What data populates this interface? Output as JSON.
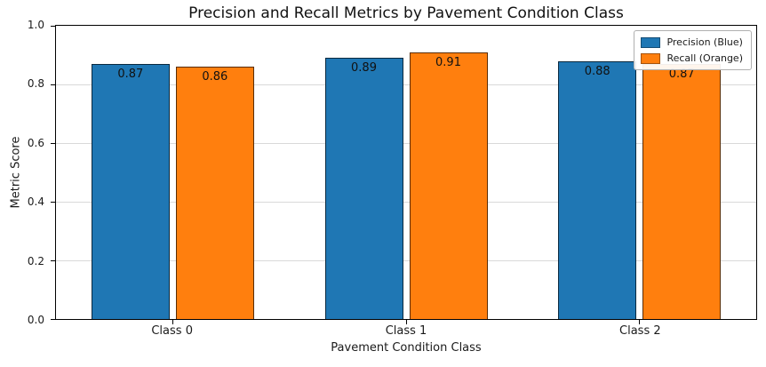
{
  "chart_data": {
    "type": "bar",
    "title": "Precision and Recall Metrics by Pavement Condition Class",
    "xlabel": "Pavement Condition Class",
    "ylabel": "Metric Score",
    "categories": [
      "Class 0",
      "Class 1",
      "Class 2"
    ],
    "series": [
      {
        "name": "Precision (Blue)",
        "color": "#1f77b4",
        "values": [
          0.87,
          0.89,
          0.88
        ]
      },
      {
        "name": "Recall (Orange)",
        "color": "#ff7f0e",
        "values": [
          0.86,
          0.91,
          0.87
        ]
      }
    ],
    "ylim": [
      0.0,
      1.0
    ],
    "yticks": [
      0.0,
      0.2,
      0.4,
      0.6,
      0.8,
      1.0
    ],
    "grid": true,
    "bar_value_decimals": 2,
    "legend_position": "top-right",
    "background_color": "#ffffff"
  }
}
